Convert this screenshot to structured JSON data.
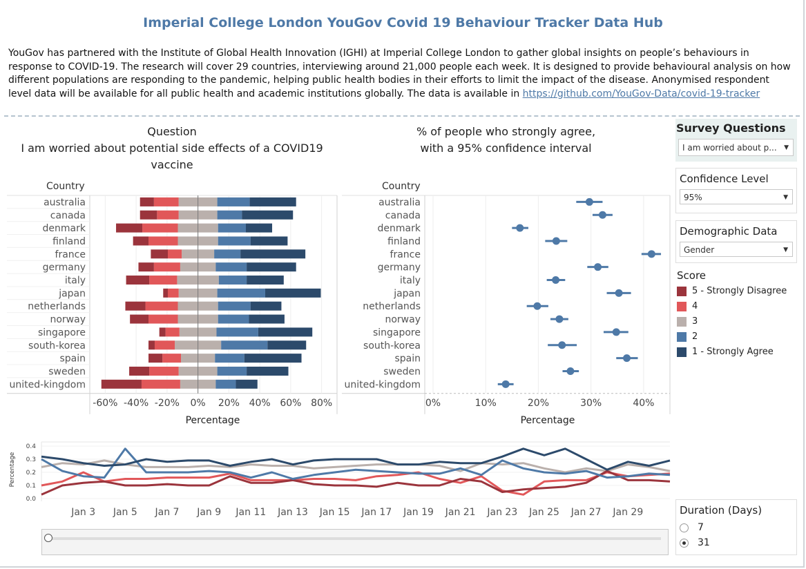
{
  "header": {
    "title": "Imperial College London YouGov Covid 19 Behaviour Tracker Data Hub",
    "description": "YouGov has partnered with the Institute of Global Health Innovation (IGHI) at Imperial College London to gather global insights on people’s behaviours in response to COVID-19. The research will cover 29 countries, interviewing around 21,000 people each week. It is designed to provide behavioural analysis on how different populations are responding to the pandemic, helping public health bodies in their efforts to limit the impact of the disease. Anonymised respondent level data will be available for all public health and academic institutions globally. The data is available in ",
    "link_text": "https://github.com/YouGov-Data/covid-19-tracker"
  },
  "left_chart": {
    "heading_line1": "Question",
    "heading_line2": "I am worried about potential side effects of a COVID19",
    "heading_line3": "vaccine",
    "country_header": "Country",
    "axis_title": "Percentage"
  },
  "right_chart": {
    "heading_line1": "% of people who strongly agree,",
    "heading_line2": "with a 95% confidence interval",
    "country_header": "Country",
    "axis_title": "Percentage"
  },
  "controls": {
    "survey_title": "Survey Questions",
    "survey_value": "I am worried about p...",
    "confidence_title": "Confidence Level",
    "confidence_value": "95%",
    "demographic_title": "Demographic Data",
    "demographic_value": "Gender",
    "score_title": "Score",
    "duration_title": "Duration (Days)",
    "duration_options": [
      "7",
      "31"
    ],
    "duration_selected": "31"
  },
  "colors": {
    "score5": "#9b343c",
    "score4": "#e15759",
    "score3": "#bab0ac",
    "score2": "#4e79a7",
    "score1": "#2c4a6b",
    "title": "#4e79a7"
  },
  "chart_data": [
    {
      "type": "bar",
      "subtype": "diverging-stacked",
      "title": "Question I am worried about potential side effects of a COVID19 vaccine",
      "xlabel": "Percentage",
      "ylabel": "Country",
      "xlim": [
        -70,
        90
      ],
      "xticks": [
        "-60%",
        "-40%",
        "-20%",
        "0%",
        "20%",
        "40%",
        "60%",
        "80%"
      ],
      "categories": [
        "australia",
        "canada",
        "denmark",
        "finland",
        "france",
        "germany",
        "italy",
        "japan",
        "netherlands",
        "norway",
        "singapore",
        "south-korea",
        "spain",
        "sweden",
        "united-kingdom"
      ],
      "series": [
        {
          "name": "5 - Strongly Disagree",
          "values": [
            9,
            11,
            17,
            10,
            11,
            10,
            15,
            3,
            13,
            12,
            4,
            4,
            9,
            13,
            26
          ]
        },
        {
          "name": "4",
          "values": [
            16,
            14,
            23,
            19,
            9,
            17,
            18,
            7,
            21,
            19,
            9,
            13,
            12,
            19,
            25
          ]
        },
        {
          "name": "3",
          "values": [
            25,
            25,
            26,
            26,
            21,
            23,
            27,
            25,
            26,
            26,
            24,
            30,
            22,
            25,
            23
          ]
        },
        {
          "name": "2",
          "values": [
            21,
            16,
            18,
            21,
            17,
            20,
            18,
            31,
            21,
            20,
            27,
            30,
            19,
            19,
            13
          ]
        },
        {
          "name": "1 - Strongly Agree",
          "values": [
            30,
            33,
            17,
            24,
            42,
            32,
            24,
            36,
            20,
            23,
            35,
            25,
            37,
            27,
            14
          ]
        }
      ],
      "legend": [
        "5 - Strongly Disagree",
        "4",
        "3",
        "2",
        "1 - Strongly Agree"
      ],
      "legend_position": "right"
    },
    {
      "type": "scatter",
      "subtype": "dot-with-error-bars",
      "title": "% of people who strongly agree, with a 95% confidence interval",
      "xlabel": "Percentage",
      "ylabel": "Country",
      "xlim": [
        0,
        45
      ],
      "xticks": [
        "0%",
        "10%",
        "20%",
        "30%",
        "40%"
      ],
      "categories": [
        "australia",
        "canada",
        "denmark",
        "finland",
        "france",
        "germany",
        "italy",
        "japan",
        "netherlands",
        "norway",
        "singapore",
        "south-korea",
        "spain",
        "sweden",
        "united-kingdom"
      ],
      "values": [
        29.7,
        32.2,
        16.5,
        23.4,
        41.5,
        31.3,
        23.3,
        35.3,
        19.8,
        24.0,
        34.8,
        24.5,
        36.8,
        26.1,
        13.8
      ],
      "ci_low": [
        27.2,
        30.3,
        15.0,
        21.3,
        39.6,
        29.3,
        21.6,
        33.0,
        17.8,
        22.3,
        32.4,
        21.8,
        34.8,
        24.6,
        12.3
      ],
      "ci_high": [
        32.2,
        34.1,
        18.1,
        25.5,
        43.3,
        33.3,
        25.1,
        37.6,
        21.9,
        25.7,
        37.1,
        27.3,
        38.9,
        27.7,
        15.3
      ]
    },
    {
      "type": "line",
      "title": "",
      "xlabel": "",
      "ylabel": "Percentage",
      "ylim": [
        0,
        0.4
      ],
      "yticks": [
        "0.0",
        "0.1",
        "0.2",
        "0.3",
        "0.4"
      ],
      "xtick_labels": [
        "Jan 3",
        "Jan 5",
        "Jan 7",
        "Jan 9",
        "Jan 11",
        "Jan 13",
        "Jan 15",
        "Jan 17",
        "Jan 19",
        "Jan 21",
        "Jan 23",
        "Jan 25",
        "Jan 27",
        "Jan 29"
      ],
      "x_start_day": 1,
      "series": [
        {
          "name": "1 - Strongly Agree",
          "values": [
            0.32,
            0.3,
            0.27,
            0.25,
            0.26,
            0.3,
            0.28,
            0.29,
            0.29,
            0.25,
            0.28,
            0.3,
            0.26,
            0.29,
            0.3,
            0.3,
            0.3,
            0.26,
            0.26,
            0.28,
            0.27,
            0.27,
            0.32,
            0.38,
            0.33,
            0.38,
            0.3,
            0.22,
            0.28,
            0.25,
            0.29
          ]
        },
        {
          "name": "2",
          "values": [
            0.3,
            0.21,
            0.17,
            0.16,
            0.38,
            0.2,
            0.2,
            0.2,
            0.21,
            0.2,
            0.16,
            0.2,
            0.15,
            0.18,
            0.2,
            0.22,
            0.21,
            0.2,
            0.19,
            0.19,
            0.23,
            0.18,
            0.29,
            0.23,
            0.2,
            0.19,
            0.21,
            0.16,
            0.17,
            0.19,
            0.18
          ]
        },
        {
          "name": "3",
          "values": [
            0.24,
            0.27,
            0.26,
            0.29,
            0.26,
            0.24,
            0.24,
            0.24,
            0.25,
            0.24,
            0.26,
            0.25,
            0.25,
            0.23,
            0.24,
            0.25,
            0.26,
            0.26,
            0.26,
            0.25,
            0.21,
            0.27,
            0.26,
            0.27,
            0.23,
            0.2,
            0.23,
            0.21,
            0.26,
            0.24,
            0.21
          ]
        },
        {
          "name": "4",
          "values": [
            0.1,
            0.13,
            0.2,
            0.13,
            0.15,
            0.15,
            0.16,
            0.16,
            0.16,
            0.19,
            0.14,
            0.14,
            0.14,
            0.15,
            0.15,
            0.14,
            0.17,
            0.18,
            0.2,
            0.15,
            0.12,
            0.17,
            0.06,
            0.03,
            0.13,
            0.14,
            0.14,
            0.2,
            0.17,
            0.18,
            0.19
          ]
        },
        {
          "name": "5 - Strongly Disagree",
          "values": [
            0.03,
            0.1,
            0.12,
            0.13,
            0.1,
            0.1,
            0.11,
            0.1,
            0.1,
            0.17,
            0.12,
            0.12,
            0.14,
            0.11,
            0.1,
            0.1,
            0.09,
            0.12,
            0.1,
            0.1,
            0.15,
            0.13,
            0.05,
            0.07,
            0.08,
            0.09,
            0.12,
            0.21,
            0.14,
            0.14,
            0.13
          ]
        }
      ]
    }
  ]
}
